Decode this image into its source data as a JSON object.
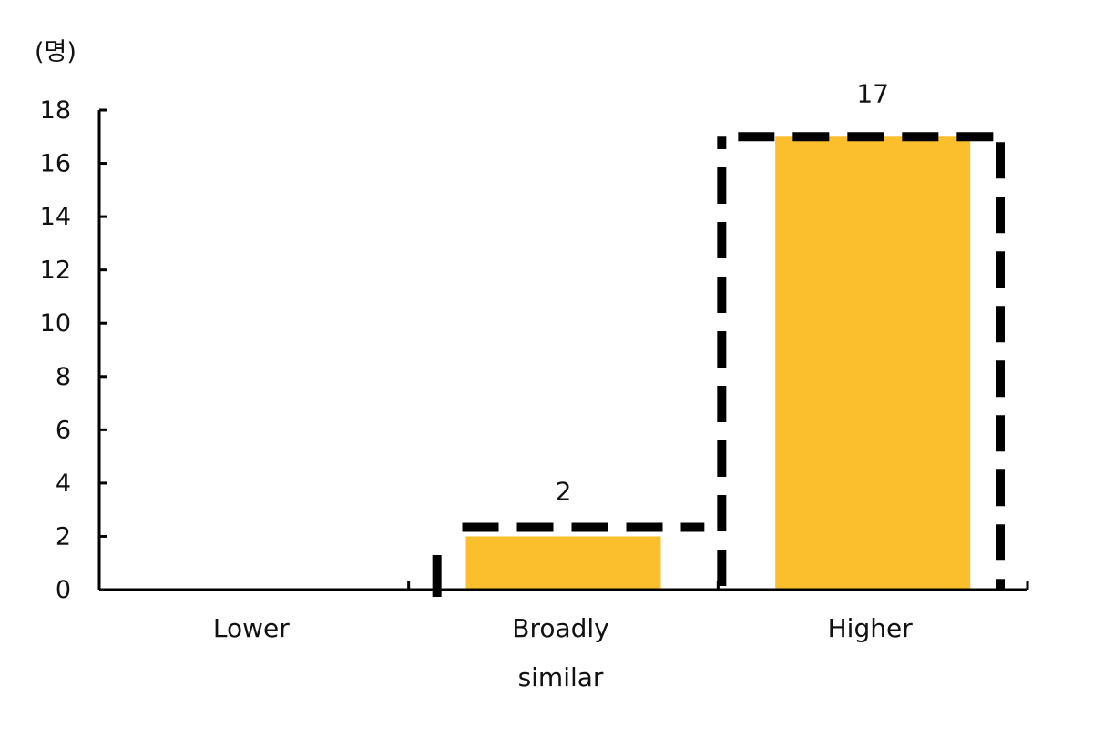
{
  "chart_data": {
    "type": "bar",
    "unit_label": "(명)",
    "categories": [
      {
        "lines": [
          "Lower"
        ]
      },
      {
        "lines": [
          "Broadly",
          "similar"
        ]
      },
      {
        "lines": [
          "Higher"
        ]
      }
    ],
    "values": [
      0,
      2,
      17
    ],
    "data_labels": [
      "",
      "2",
      "17"
    ],
    "ylim": [
      0,
      18
    ],
    "yticks": [
      0,
      2,
      4,
      6,
      8,
      10,
      12,
      14,
      16,
      18
    ],
    "bar_color": "#FBBF2D",
    "outline_color": "#000000",
    "grid": false,
    "legend": "none"
  }
}
